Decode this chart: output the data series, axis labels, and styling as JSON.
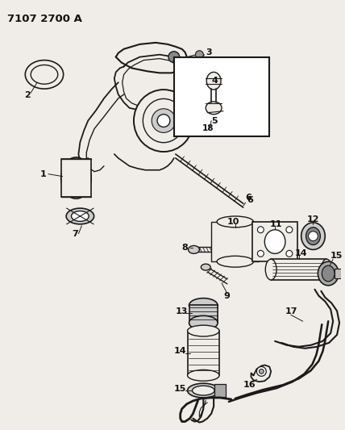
{
  "title": "7107 2700 A",
  "bg_color": "#f0ede8",
  "line_color": "#1a1a1a",
  "text_color": "#111111",
  "title_fontsize": 9.5,
  "label_fontsize": 8,
  "fig_width": 4.28,
  "fig_height": 5.33,
  "dpi": 100
}
